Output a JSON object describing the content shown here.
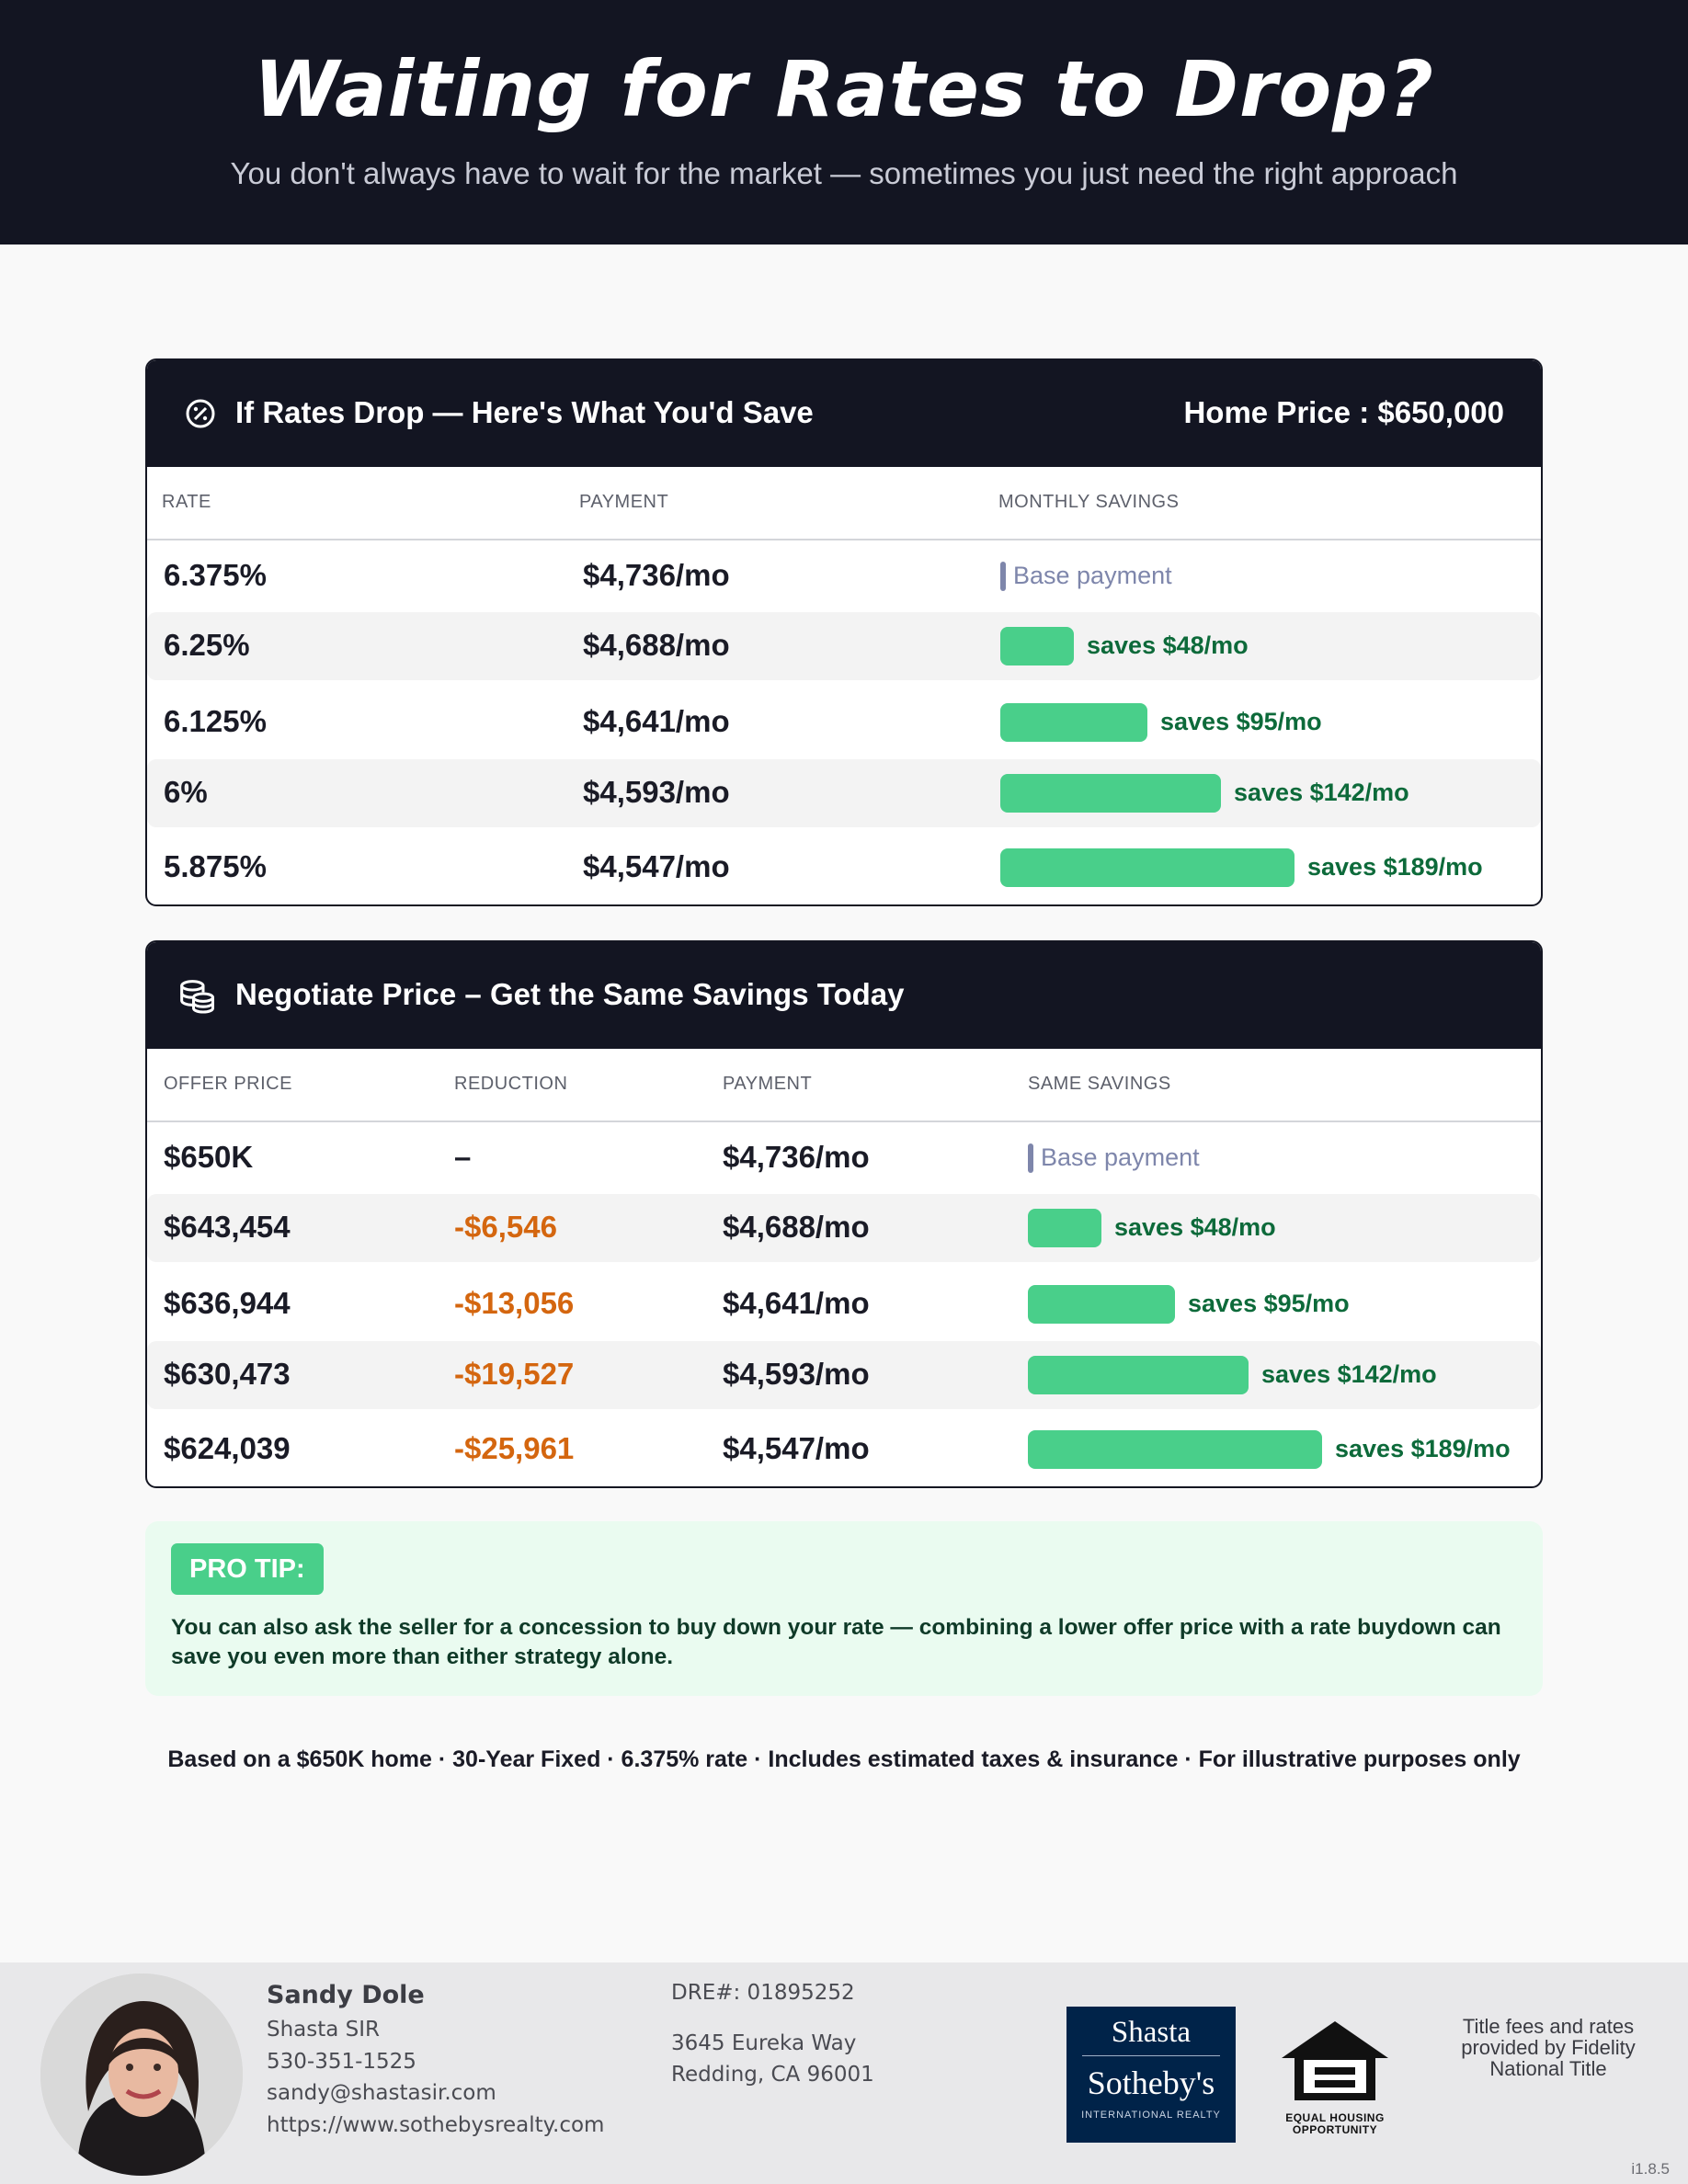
{
  "header": {
    "title": "Waiting for Rates to Drop?",
    "subtitle": "You don't always have to wait for the market — sometimes you just need the right approach"
  },
  "rates_card": {
    "icon": "percent-badge-icon",
    "title": "If Rates Drop — Here's What You'd Save",
    "home_price": "Home Price : $650,000",
    "columns": [
      "RATE",
      "PAYMENT",
      "MONTHLY SAVINGS"
    ],
    "rows": [
      {
        "rate": "6.375%",
        "payment": "$4,736/mo",
        "savings_label": "Base payment",
        "savings_amount": 0
      },
      {
        "rate": "6.25%",
        "payment": "$4,688/mo",
        "savings_label": "saves $48/mo",
        "savings_amount": 48
      },
      {
        "rate": "6.125%",
        "payment": "$4,641/mo",
        "savings_label": "saves $95/mo",
        "savings_amount": 95
      },
      {
        "rate": "6%",
        "payment": "$4,593/mo",
        "savings_label": "saves $142/mo",
        "savings_amount": 142
      },
      {
        "rate": "5.875%",
        "payment": "$4,547/mo",
        "savings_label": "saves $189/mo",
        "savings_amount": 189
      }
    ]
  },
  "negotiate_card": {
    "icon": "coins-stack-icon",
    "title": "Negotiate Price – Get the Same Savings Today",
    "columns": [
      "OFFER PRICE",
      "REDUCTION",
      "PAYMENT",
      "SAME SAVINGS"
    ],
    "rows": [
      {
        "offer": "$650K",
        "reduction": "–",
        "payment": "$4,736/mo",
        "savings_label": "Base payment",
        "savings_amount": 0
      },
      {
        "offer": "$643,454",
        "reduction": "-$6,546",
        "payment": "$4,688/mo",
        "savings_label": "saves $48/mo",
        "savings_amount": 48
      },
      {
        "offer": "$636,944",
        "reduction": "-$13,056",
        "payment": "$4,641/mo",
        "savings_label": "saves $95/mo",
        "savings_amount": 95
      },
      {
        "offer": "$630,473",
        "reduction": "-$19,527",
        "payment": "$4,593/mo",
        "savings_label": "saves $142/mo",
        "savings_amount": 142
      },
      {
        "offer": "$624,039",
        "reduction": "-$25,961",
        "payment": "$4,547/mo",
        "savings_label": "saves $189/mo",
        "savings_amount": 189
      }
    ]
  },
  "pro_tip": {
    "badge": "PRO TIP:",
    "text": "You can also ask the seller for a concession to buy down your rate — combining a lower offer price with a rate buydown can save you even more than either strategy alone."
  },
  "disclaimer": "Based on a $650K home · 30-Year Fixed · 6.375% rate · Includes estimated taxes & insurance · For illustrative purposes only",
  "footer": {
    "agent_name": "Sandy Dole",
    "company": "Shasta SIR",
    "phone": "530-351-1525",
    "email": "sandy@shastasir.com",
    "website": "https://www.sothebysrealty.com",
    "dre": "DRE#: 01895252",
    "address_line1": "3645 Eureka Way",
    "address_line2": "Redding, CA 96001",
    "logo_line1": "Shasta",
    "logo_line2": "Sotheby's",
    "logo_line3": "INTERNATIONAL REALTY",
    "eho_line1": "EQUAL HOUSING",
    "eho_line2": "OPPORTUNITY",
    "title_fees": "Title fees and rates provided by Fidelity National Title",
    "version": "i1.8.5"
  },
  "colors": {
    "dark": "#131522",
    "green_bar": "#49cf8a",
    "green_text": "#0d6a3a",
    "reduction": "#d4660f",
    "base_mark": "#7e86ab"
  }
}
